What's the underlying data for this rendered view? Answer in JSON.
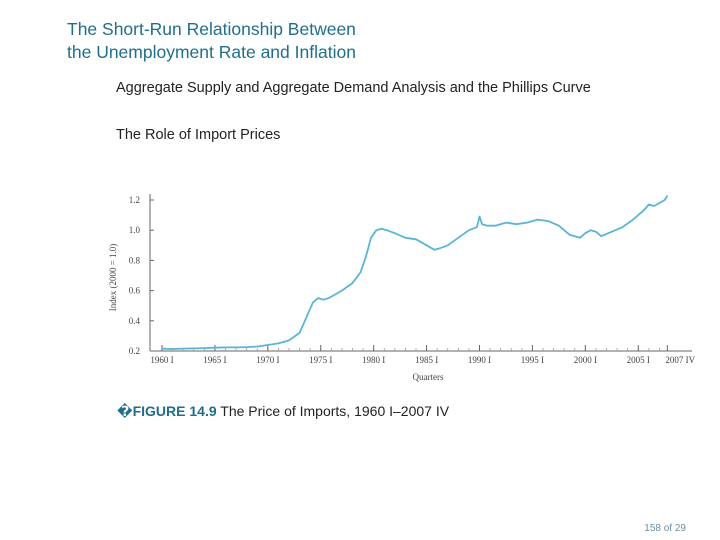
{
  "slide": {
    "title_line1": "The Short-Run Relationship Between",
    "title_line2": "the Unemployment Rate and Inflation",
    "subhead1": "Aggregate Supply and Aggregate Demand Analysis and the Phillips Curve",
    "subhead2": "The Role of Import Prices"
  },
  "caption": {
    "marker": "�",
    "figure_label": "FIGURE 14.9",
    "text": "The Price of Imports, 1960 I–2007 IV"
  },
  "page": {
    "label": "158 of 29"
  },
  "colors": {
    "title": "#1f6e8c",
    "line": "#5ab4d8",
    "axis": "#666666"
  },
  "chart_data": {
    "type": "line",
    "title": "",
    "xlabel": "Quarters",
    "ylabel": "Index (2000 = 1.0)",
    "xlim": [
      1960,
      2008
    ],
    "ylim": [
      0.2,
      1.2
    ],
    "xticks": [
      {
        "value": 1960,
        "label": "1960 I"
      },
      {
        "value": 1965,
        "label": "1965 I"
      },
      {
        "value": 1970,
        "label": "1970 I"
      },
      {
        "value": 1975,
        "label": "1975 I"
      },
      {
        "value": 1980,
        "label": "1980 I"
      },
      {
        "value": 1985,
        "label": "1985 I"
      },
      {
        "value": 1990,
        "label": "1990 I"
      },
      {
        "value": 1995,
        "label": "1995 I"
      },
      {
        "value": 2000,
        "label": "2000 I"
      },
      {
        "value": 2005,
        "label": "2005 I"
      },
      {
        "value": 2007.75,
        "label": "2007 IV"
      }
    ],
    "yticks": [
      {
        "value": 0.2,
        "label": "0.2"
      },
      {
        "value": 0.4,
        "label": "0.4"
      },
      {
        "value": 0.6,
        "label": "0.6"
      },
      {
        "value": 0.8,
        "label": "0.8"
      },
      {
        "value": 1.0,
        "label": "1.0"
      },
      {
        "value": 1.2,
        "label": "1.2"
      }
    ],
    "series": [
      {
        "name": "Price of Imports",
        "x": [
          1960,
          1961,
          1962,
          1963,
          1964,
          1965,
          1966,
          1967,
          1968,
          1969,
          1970,
          1971,
          1972,
          1973,
          1973.75,
          1974.25,
          1974.75,
          1975.25,
          1975.75,
          1976.25,
          1977,
          1978,
          1978.75,
          1979.25,
          1979.75,
          1980.25,
          1980.75,
          1981.25,
          1982,
          1983,
          1984,
          1985,
          1985.75,
          1986.25,
          1987,
          1988,
          1989,
          1989.75,
          1990,
          1990.25,
          1990.75,
          1991.5,
          1992.5,
          1993.5,
          1994.5,
          1995.5,
          1996.5,
          1997.5,
          1998.5,
          1999.5,
          2000,
          2000.5,
          2001,
          2001.5,
          2002.5,
          2003.5,
          2004.5,
          2005,
          2005.5,
          2006,
          2006.5,
          2007,
          2007.5,
          2007.75
        ],
        "values": [
          0.215,
          0.213,
          0.216,
          0.217,
          0.219,
          0.222,
          0.224,
          0.224,
          0.226,
          0.23,
          0.24,
          0.25,
          0.27,
          0.32,
          0.44,
          0.52,
          0.55,
          0.54,
          0.55,
          0.57,
          0.6,
          0.65,
          0.72,
          0.82,
          0.95,
          1.0,
          1.01,
          1.0,
          0.98,
          0.95,
          0.94,
          0.9,
          0.87,
          0.88,
          0.9,
          0.95,
          1.0,
          1.02,
          1.09,
          1.04,
          1.03,
          1.03,
          1.05,
          1.04,
          1.05,
          1.07,
          1.06,
          1.03,
          0.97,
          0.95,
          0.98,
          1.0,
          0.99,
          0.96,
          0.99,
          1.02,
          1.07,
          1.1,
          1.13,
          1.17,
          1.16,
          1.18,
          1.2,
          1.23
        ]
      }
    ]
  }
}
